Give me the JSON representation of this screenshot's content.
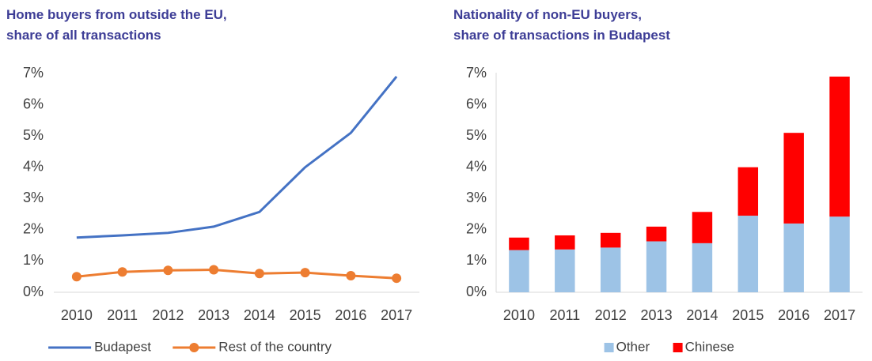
{
  "chart_data": [
    {
      "type": "line",
      "title": [
        "Home buyers from outside the EU,",
        "share of all transactions"
      ],
      "categories": [
        "2010",
        "2011",
        "2012",
        "2013",
        "2014",
        "2015",
        "2016",
        "2017"
      ],
      "series": [
        {
          "name": "Budapest",
          "color": "#4472c4",
          "marker": false,
          "values": [
            1.75,
            1.82,
            1.9,
            2.1,
            2.57,
            4.0,
            5.1,
            6.9
          ]
        },
        {
          "name": "Rest of the country",
          "color": "#ed7d31",
          "marker": true,
          "values": [
            0.5,
            0.65,
            0.7,
            0.72,
            0.6,
            0.63,
            0.53,
            0.45
          ]
        }
      ],
      "ylim": [
        0,
        7
      ],
      "yticks": [
        {
          "value": 0,
          "label": "0%"
        },
        {
          "value": 1,
          "label": "1%"
        },
        {
          "value": 2,
          "label": "2%"
        },
        {
          "value": 3,
          "label": "3%"
        },
        {
          "value": 4,
          "label": "4%"
        },
        {
          "value": 5,
          "label": "5%"
        },
        {
          "value": 6,
          "label": "6%"
        },
        {
          "value": 7,
          "label": "7%"
        }
      ],
      "grid": false
    },
    {
      "type": "stacked_bar",
      "title": [
        "Nationality of non-EU buyers,",
        "share of transactions in Budapest"
      ],
      "categories": [
        "2010",
        "2011",
        "2012",
        "2013",
        "2014",
        "2015",
        "2016",
        "2017"
      ],
      "series": [
        {
          "name": "Other",
          "color": "#9dc3e6",
          "values": [
            1.35,
            1.37,
            1.43,
            1.63,
            1.57,
            2.45,
            2.2,
            2.42
          ]
        },
        {
          "name": "Chinese",
          "color": "#ff0000",
          "values": [
            0.4,
            0.45,
            0.47,
            0.47,
            1.0,
            1.55,
            2.9,
            4.48
          ]
        }
      ],
      "ylim": [
        0,
        7
      ],
      "yticks": [
        {
          "value": 0,
          "label": "0%"
        },
        {
          "value": 1,
          "label": "1%"
        },
        {
          "value": 2,
          "label": "2%"
        },
        {
          "value": 3,
          "label": "3%"
        },
        {
          "value": 4,
          "label": "4%"
        },
        {
          "value": 5,
          "label": "5%"
        },
        {
          "value": 6,
          "label": "6%"
        },
        {
          "value": 7,
          "label": "7%"
        }
      ],
      "grid": false
    }
  ]
}
